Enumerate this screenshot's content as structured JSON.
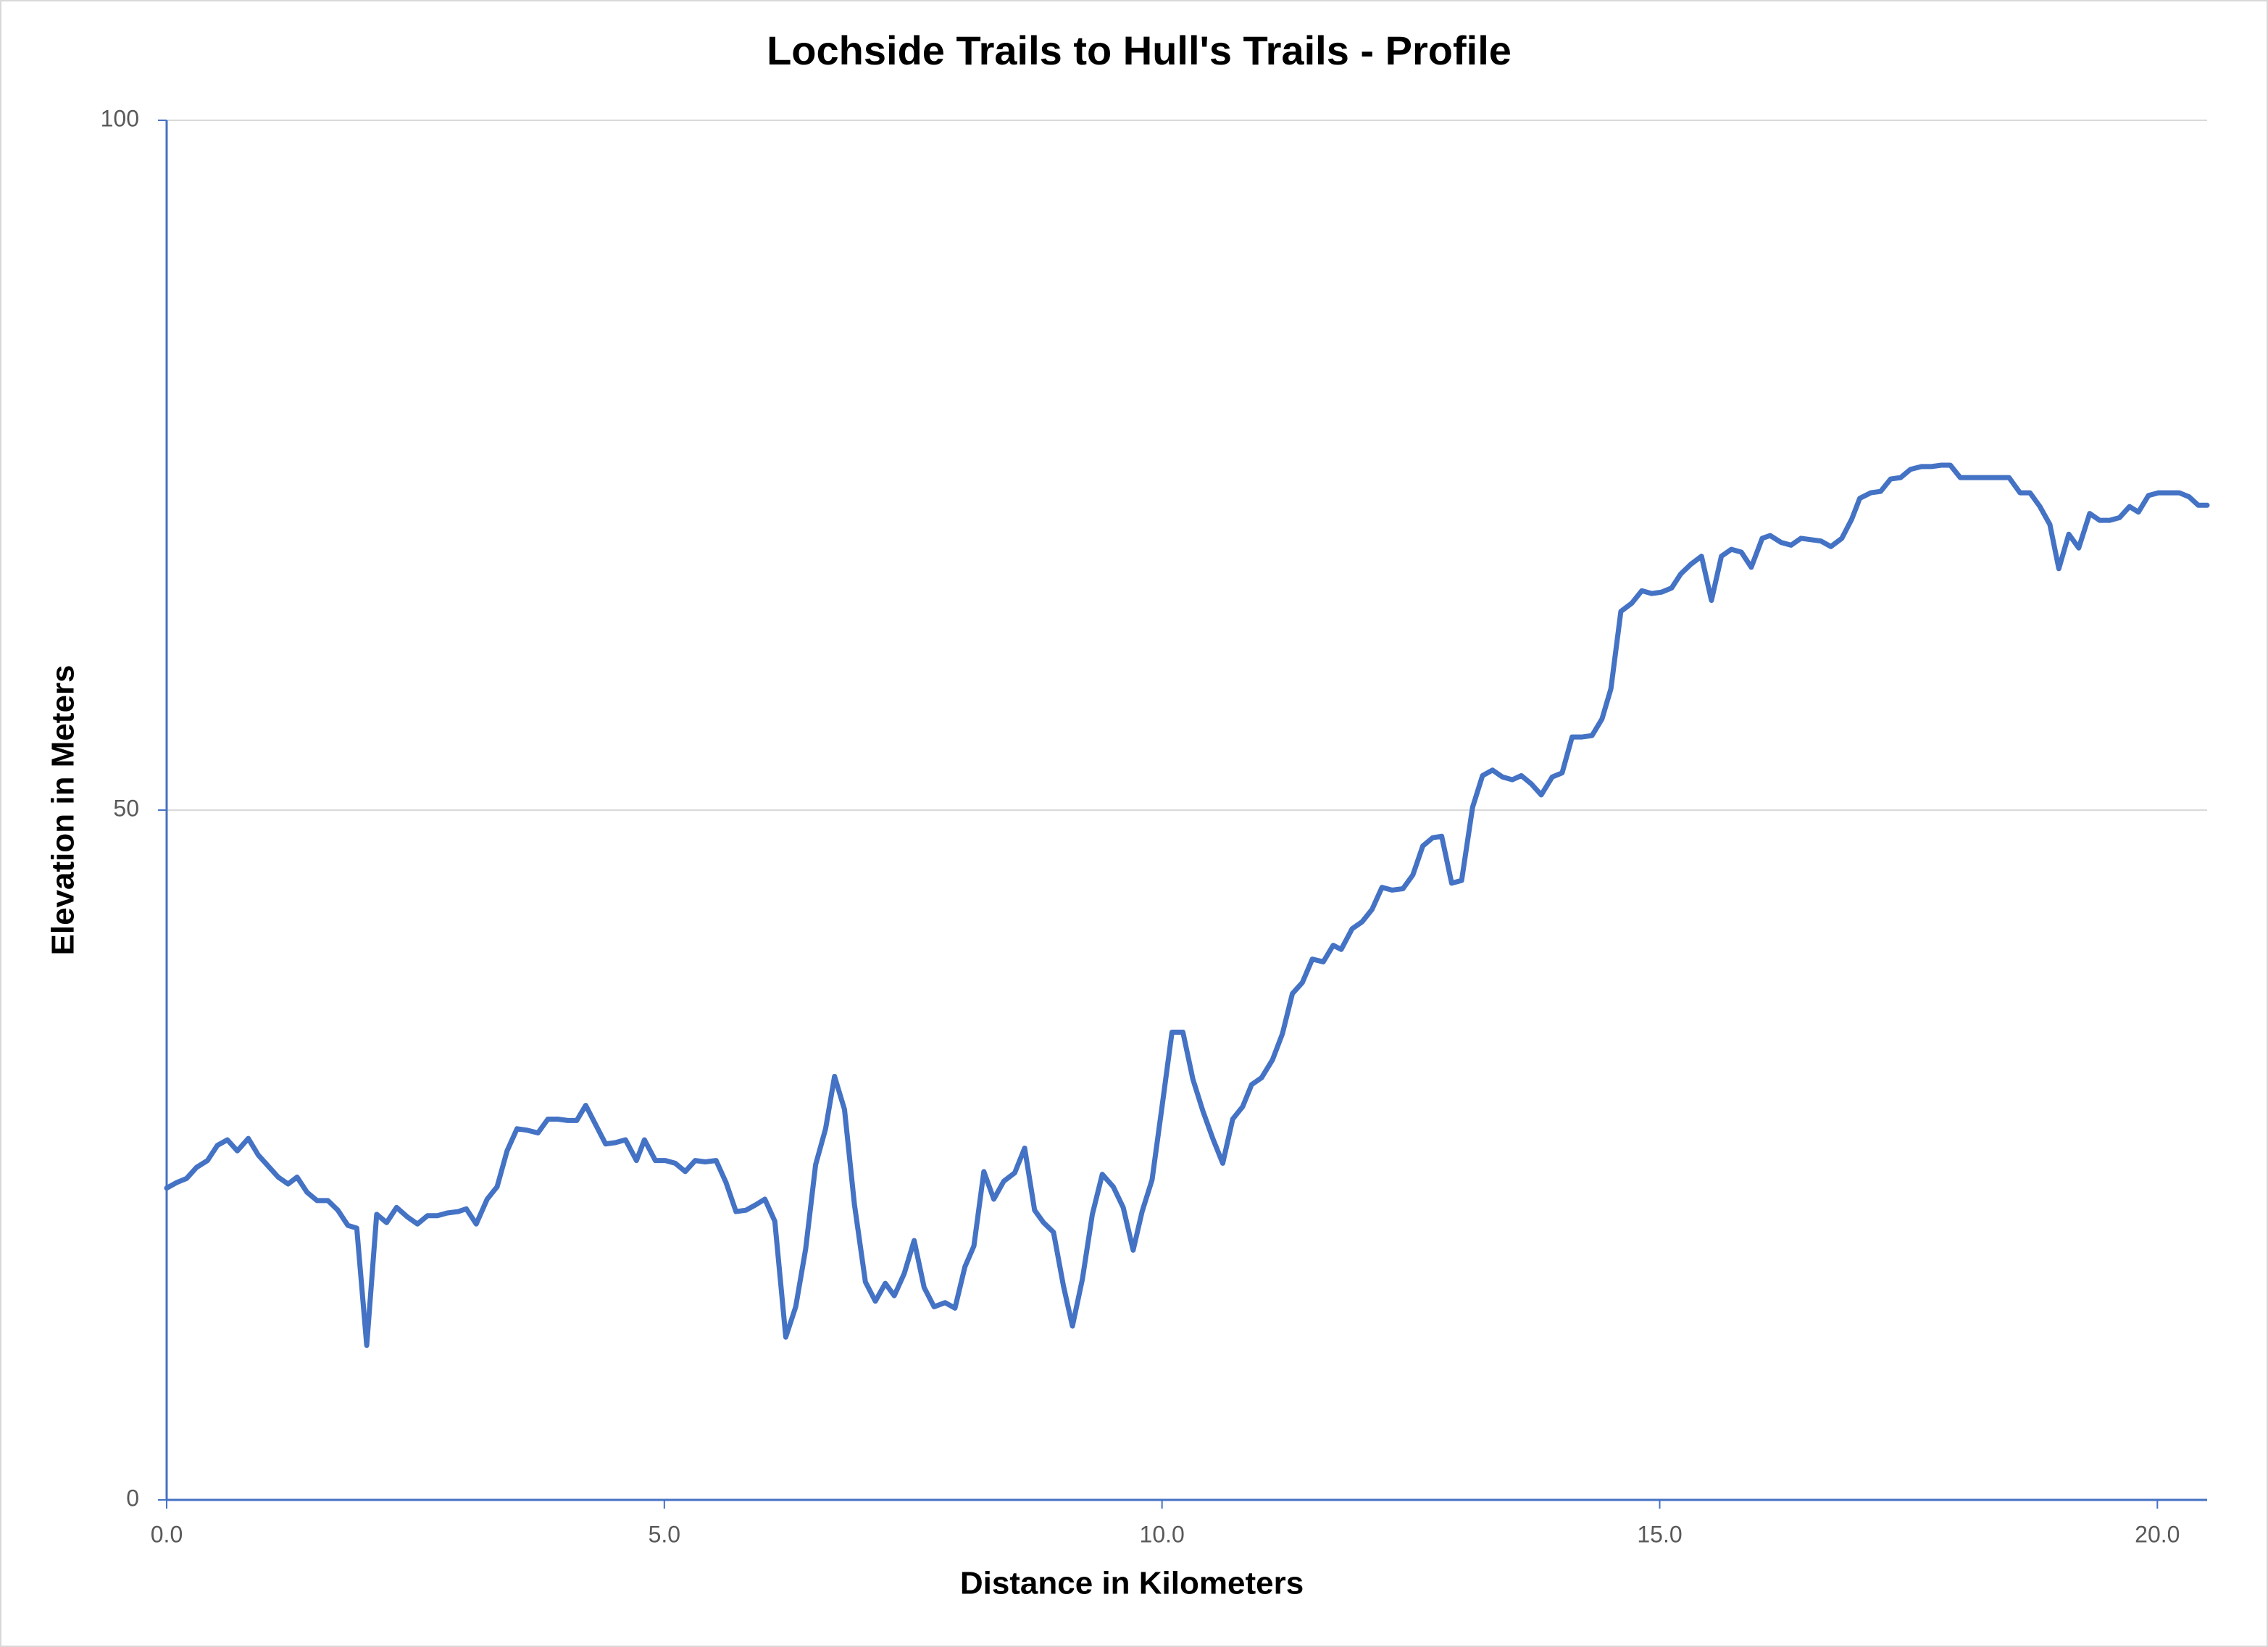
{
  "chart_data": {
    "type": "line",
    "title": "Lochside Trails to Hull's Trails - Profile",
    "x_label": "Distance in Kilometers",
    "y_label": "Elevation in Meters",
    "x": [
      0,
      0.1,
      0.2,
      0.3,
      0.41,
      0.51,
      0.61,
      0.71,
      0.82,
      0.92,
      1.02,
      1.12,
      1.22,
      1.31,
      1.41,
      1.51,
      1.62,
      1.72,
      1.82,
      1.91,
      2.01,
      2.11,
      2.21,
      2.31,
      2.42,
      2.52,
      2.62,
      2.72,
      2.82,
      2.93,
      3.01,
      3.11,
      3.22,
      3.32,
      3.42,
      3.52,
      3.62,
      3.73,
      3.83,
      3.93,
      4.03,
      4.12,
      4.21,
      4.31,
      4.41,
      4.51,
      4.61,
      4.72,
      4.8,
      4.91,
      5.01,
      5.11,
      5.21,
      5.31,
      5.41,
      5.52,
      5.62,
      5.72,
      5.82,
      5.92,
      6.01,
      6.11,
      6.22,
      6.32,
      6.42,
      6.52,
      6.62,
      6.71,
      6.81,
      6.91,
      7.02,
      7.12,
      7.22,
      7.31,
      7.41,
      7.51,
      7.61,
      7.71,
      7.82,
      7.92,
      8.02,
      8.11,
      8.21,
      8.31,
      8.41,
      8.52,
      8.62,
      8.72,
      8.81,
      8.91,
      9.01,
      9.1,
      9.2,
      9.3,
      9.4,
      9.51,
      9.61,
      9.71,
      9.8,
      9.9,
      10.0,
      10.1,
      10.21,
      10.31,
      10.41,
      10.51,
      10.61,
      10.71,
      10.81,
      10.9,
      11.0,
      11.11,
      11.21,
      11.31,
      11.41,
      11.51,
      11.62,
      11.72,
      11.8,
      11.91,
      12.01,
      12.11,
      12.21,
      12.31,
      12.42,
      12.52,
      12.62,
      12.72,
      12.81,
      12.91,
      13.01,
      13.12,
      13.22,
      13.32,
      13.42,
      13.52,
      13.61,
      13.71,
      13.81,
      13.92,
      14.02,
      14.12,
      14.22,
      14.32,
      14.42,
      14.51,
      14.61,
      14.72,
      14.82,
      14.92,
      15.02,
      15.12,
      15.21,
      15.31,
      15.42,
      15.52,
      15.62,
      15.72,
      15.82,
      15.92,
      16.03,
      16.11,
      16.22,
      16.32,
      16.42,
      16.52,
      16.62,
      16.72,
      16.83,
      16.93,
      17.01,
      17.12,
      17.22,
      17.32,
      17.42,
      17.52,
      17.63,
      17.73,
      17.83,
      17.92,
      18.02,
      18.12,
      18.51,
      18.62,
      18.72,
      18.82,
      18.92,
      19.01,
      19.11,
      19.21,
      19.32,
      19.42,
      19.52,
      19.62,
      19.72,
      19.81,
      19.91,
      20.01,
      20.12,
      20.22,
      20.32,
      20.41,
      20.5
    ],
    "series": [
      {
        "color": "#4472c4",
        "values": [
          22.6,
          23.0,
          23.3,
          24.1,
          24.6,
          25.7,
          26.1,
          25.3,
          26.2,
          25.0,
          24.2,
          23.4,
          22.9,
          23.4,
          22.3,
          21.7,
          21.7,
          21.0,
          19.9,
          19.7,
          11.2,
          20.7,
          20.1,
          21.2,
          20.5,
          20.0,
          20.6,
          20.6,
          20.8,
          20.9,
          21.1,
          20.0,
          21.8,
          22.7,
          25.3,
          26.9,
          26.8,
          26.6,
          27.6,
          27.6,
          27.5,
          27.5,
          28.6,
          27.2,
          25.8,
          25.9,
          26.1,
          24.6,
          26.1,
          24.6,
          24.6,
          24.4,
          23.8,
          24.6,
          24.5,
          24.6,
          23.0,
          20.9,
          21.0,
          21.4,
          21.8,
          20.2,
          11.8,
          14.0,
          18.2,
          24.3,
          26.9,
          30.7,
          28.3,
          21.4,
          15.8,
          14.4,
          15.7,
          14.8,
          16.4,
          18.8,
          15.4,
          14.0,
          14.3,
          13.9,
          16.9,
          18.4,
          23.8,
          21.8,
          23.1,
          23.7,
          25.5,
          21.0,
          20.1,
          19.4,
          15.5,
          12.6,
          16.0,
          20.7,
          23.6,
          22.7,
          21.2,
          18.1,
          20.9,
          23.2,
          28.5,
          33.9,
          33.9,
          30.5,
          28.2,
          26.2,
          24.4,
          27.6,
          28.5,
          30.1,
          30.6,
          31.9,
          33.8,
          36.7,
          37.5,
          39.2,
          39.0,
          40.2,
          39.9,
          41.4,
          41.9,
          42.8,
          44.4,
          44.2,
          44.3,
          45.3,
          47.4,
          48.0,
          48.1,
          44.7,
          44.9,
          50.2,
          52.5,
          52.9,
          52.4,
          52.2,
          52.5,
          51.9,
          51.1,
          52.4,
          52.7,
          55.3,
          55.3,
          55.4,
          56.6,
          58.8,
          64.4,
          65.0,
          65.9,
          65.7,
          65.8,
          66.1,
          67.1,
          67.8,
          68.4,
          65.2,
          68.4,
          68.9,
          68.7,
          67.6,
          69.7,
          69.9,
          69.4,
          69.2,
          69.7,
          69.6,
          69.5,
          69.1,
          69.7,
          71.1,
          72.6,
          73.0,
          73.1,
          74.0,
          74.1,
          74.7,
          74.9,
          74.9,
          75.0,
          75.0,
          74.1,
          74.1,
          74.1,
          73.0,
          73.0,
          72.0,
          70.7,
          67.5,
          70.0,
          69.0,
          71.5,
          71.0,
          71.0,
          71.2,
          72.0,
          71.6,
          72.8,
          73.0,
          73.0,
          73.0,
          72.7,
          72.1,
          72.1
        ]
      }
    ],
    "xlim": [
      0,
      20.5
    ],
    "xticks": [
      {
        "value": 0,
        "label": "0.0"
      },
      {
        "value": 5,
        "label": "5.0"
      },
      {
        "value": 10,
        "label": "10.0"
      },
      {
        "value": 15,
        "label": "15.0"
      },
      {
        "value": 20,
        "label": "20.0"
      }
    ],
    "ylim": [
      0,
      100
    ],
    "yticks": [
      0,
      50,
      100
    ],
    "grid": true
  }
}
